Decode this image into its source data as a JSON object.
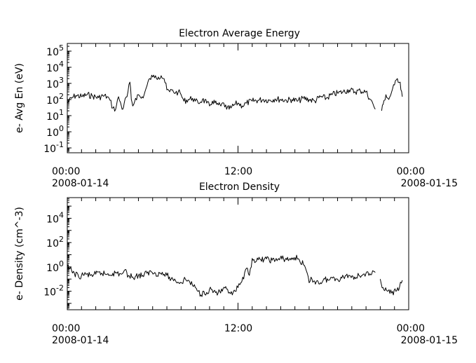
{
  "chart_data": [
    {
      "type": "line",
      "title": "Electron Average Energy",
      "ylabel": "e- Avg En (eV)",
      "xlabel": "",
      "yscale": "log",
      "ylim": [
        0.05,
        300000
      ],
      "xlim_hours": [
        0,
        24
      ],
      "x_ticks": [
        {
          "time": "00:00",
          "date": "2008-01-14"
        },
        {
          "time": "12:00",
          "date": ""
        },
        {
          "time": "00:00",
          "date": "2008-01-15"
        }
      ],
      "y_ticks": [
        {
          "base": "10",
          "exp": "-1"
        },
        {
          "base": "10",
          "exp": "0"
        },
        {
          "base": "10",
          "exp": "1"
        },
        {
          "base": "10",
          "exp": "2"
        },
        {
          "base": "10",
          "exp": "3"
        },
        {
          "base": "10",
          "exp": "4"
        },
        {
          "base": "10",
          "exp": "5"
        }
      ],
      "series": [
        {
          "segments": [
            {
              "x": [
                0.0,
                0.3,
                0.6,
                1.0,
                1.4,
                1.8,
                2.2,
                2.5,
                2.8,
                3.0,
                3.2,
                3.4,
                3.6,
                3.8,
                3.9,
                4.0,
                4.2,
                4.4,
                4.5,
                4.6,
                4.8,
                5.0,
                5.2,
                5.4,
                5.6,
                5.8,
                6.0,
                6.2,
                6.4,
                6.6,
                6.8,
                7.0,
                7.2,
                7.4,
                7.6,
                7.8,
                8.0,
                8.2,
                8.5,
                8.8,
                9.0,
                9.2,
                9.5,
                9.8,
                10.0,
                10.2,
                10.5,
                10.8,
                11.0,
                11.2,
                11.5,
                11.8,
                12.0,
                12.3,
                12.6,
                13.0,
                13.4,
                13.8,
                14.2,
                14.6,
                15.0,
                15.4,
                15.8,
                16.2,
                16.6,
                17.0,
                17.4,
                17.8,
                18.2,
                18.6,
                19.0,
                19.4,
                19.8,
                20.2,
                20.6,
                21.0,
                21.3,
                21.5,
                21.65
              ],
              "y": [
                60,
                120,
                180,
                150,
                200,
                160,
                130,
                170,
                150,
                90,
                30,
                25,
                150,
                40,
                25,
                60,
                150,
                1200,
                100,
                40,
                120,
                200,
                120,
                200,
                700,
                2000,
                2500,
                3000,
                2500,
                3000,
                2000,
                400,
                300,
                400,
                250,
                300,
                200,
                80,
                100,
                120,
                80,
                60,
                100,
                60,
                40,
                80,
                50,
                40,
                60,
                25,
                30,
                50,
                60,
                40,
                60,
                80,
                90,
                100,
                90,
                110,
                100,
                90,
                100,
                80,
                120,
                100,
                80,
                150,
                120,
                200,
                250,
                300,
                400,
                300,
                350,
                300,
                100,
                50,
                25
              ]
            },
            {
              "x": [
                22.1,
                22.2,
                22.4,
                22.6,
                22.8,
                23.0,
                23.2,
                23.4,
                23.55
              ],
              "y": [
                20,
                50,
                200,
                100,
                300,
                800,
                2000,
                1200,
                150
              ]
            }
          ]
        }
      ]
    },
    {
      "type": "line",
      "title": "Electron Density",
      "ylabel": "e- Density (cm^-3)",
      "xlabel": "",
      "yscale": "log",
      "ylim": [
        0.0003,
        500000
      ],
      "xlim_hours": [
        0,
        24
      ],
      "x_ticks": [
        {
          "time": "00:00",
          "date": "2008-01-14"
        },
        {
          "time": "12:00",
          "date": ""
        },
        {
          "time": "00:00",
          "date": "2008-01-15"
        }
      ],
      "y_ticks": [
        {
          "base": "10",
          "exp": "-2"
        },
        {
          "base": "10",
          "exp": "0"
        },
        {
          "base": "10",
          "exp": "2"
        },
        {
          "base": "10",
          "exp": "4"
        }
      ],
      "series": [
        {
          "segments": [
            {
              "x": [
                0.0,
                0.3,
                0.5,
                0.8,
                1.0,
                1.3,
                1.6,
                2.0,
                2.4,
                2.8,
                3.2,
                3.5,
                3.8,
                4.0,
                4.3,
                4.6,
                5.0,
                5.3,
                5.6,
                5.9,
                6.2,
                6.5,
                6.8,
                7.0,
                7.3,
                7.6,
                8.0,
                8.3,
                8.6,
                8.8,
                9.0,
                9.2,
                9.4,
                9.6,
                9.8,
                10.0,
                10.3,
                10.6,
                10.9,
                11.2,
                11.4,
                11.6,
                11.8,
                12.0,
                12.2,
                12.4,
                12.6,
                12.8,
                13.0,
                13.3,
                13.6,
                14.0,
                14.4,
                14.8,
                15.2,
                15.6,
                16.0,
                16.3,
                16.6,
                16.8,
                17.0,
                17.2,
                17.5,
                17.8,
                18.1,
                18.4,
                18.7,
                19.0,
                19.3,
                19.6,
                19.9,
                20.2,
                20.5,
                20.8,
                21.0,
                21.2,
                21.4,
                21.65
              ],
              "y": [
                1.0,
                0.5,
                0.3,
                0.15,
                0.2,
                0.25,
                0.2,
                0.25,
                0.3,
                0.25,
                0.3,
                0.3,
                0.25,
                0.5,
                0.2,
                0.15,
                0.2,
                0.2,
                0.3,
                0.4,
                0.3,
                0.3,
                0.25,
                0.2,
                0.1,
                0.08,
                0.05,
                0.1,
                0.06,
                0.03,
                0.02,
                0.01,
                0.005,
                0.01,
                0.008,
                0.015,
                0.01,
                0.007,
                0.01,
                0.015,
                0.008,
                0.005,
                0.01,
                0.02,
                0.05,
                0.1,
                0.8,
                0.2,
                5.0,
                3.0,
                4.0,
                4.5,
                3.5,
                4.0,
                5.0,
                4.0,
                6.0,
                4.0,
                1.5,
                0.5,
                0.05,
                0.1,
                0.06,
                0.05,
                0.1,
                0.08,
                0.15,
                0.1,
                0.12,
                0.2,
                0.18,
                0.15,
                0.2,
                0.25,
                0.3,
                0.2,
                0.25,
                0.35
              ]
            },
            {
              "x": [
                22.0,
                22.2,
                22.5,
                22.8,
                23.1,
                23.35,
                23.55
              ],
              "y": [
                0.1,
                0.02,
                0.01,
                0.007,
                0.01,
                0.02,
                0.08
              ]
            }
          ]
        }
      ]
    }
  ]
}
